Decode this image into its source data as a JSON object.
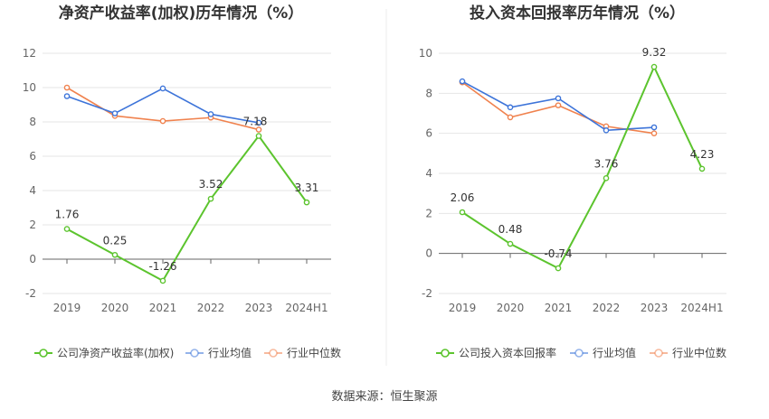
{
  "source": "数据来源：恒生聚源",
  "chart_data": [
    {
      "type": "line",
      "title": "净资产收益率(加权)历年情况（%）",
      "categories": [
        "2019",
        "2020",
        "2021",
        "2022",
        "2023",
        "2024H1"
      ],
      "ylim": [
        -2,
        12
      ],
      "yticks": [
        -2,
        0,
        2,
        4,
        6,
        8,
        10,
        12
      ],
      "grid": true,
      "legend_position": "bottom-left",
      "series": [
        {
          "name": "公司净资产收益率(加权)",
          "color": "#5cc42e",
          "values": [
            1.76,
            0.25,
            -1.26,
            3.52,
            7.18,
            3.31
          ],
          "labels": [
            "1.76",
            "0.25",
            "-1.26",
            "3.52",
            "7.18",
            "3.31"
          ]
        },
        {
          "name": "行业均值",
          "color": "#3d74d9",
          "values": [
            9.5,
            8.5,
            9.95,
            8.45,
            7.95,
            null
          ]
        },
        {
          "name": "行业中位数",
          "color": "#f0824e",
          "values": [
            10.0,
            8.35,
            8.05,
            8.25,
            7.55,
            null
          ]
        }
      ]
    },
    {
      "type": "line",
      "title": "投入资本回报率历年情况（%）",
      "categories": [
        "2019",
        "2020",
        "2021",
        "2022",
        "2023",
        "2024H1"
      ],
      "ylim": [
        -2,
        10
      ],
      "yticks": [
        -2,
        0,
        2,
        4,
        6,
        8,
        10
      ],
      "grid": true,
      "legend_position": "bottom-left",
      "series": [
        {
          "name": "公司投入资本回报率",
          "color": "#5cc42e",
          "values": [
            2.06,
            0.48,
            -0.74,
            3.76,
            9.32,
            4.23
          ],
          "labels": [
            "2.06",
            "0.48",
            "-0.74",
            "3.76",
            "9.32",
            "4.23"
          ]
        },
        {
          "name": "行业均值",
          "color": "#3d74d9",
          "values": [
            8.6,
            7.3,
            7.75,
            6.15,
            6.3,
            null
          ]
        },
        {
          "name": "行业中位数",
          "color": "#f0824e",
          "values": [
            8.55,
            6.8,
            7.4,
            6.35,
            6.0,
            null
          ]
        }
      ]
    }
  ]
}
